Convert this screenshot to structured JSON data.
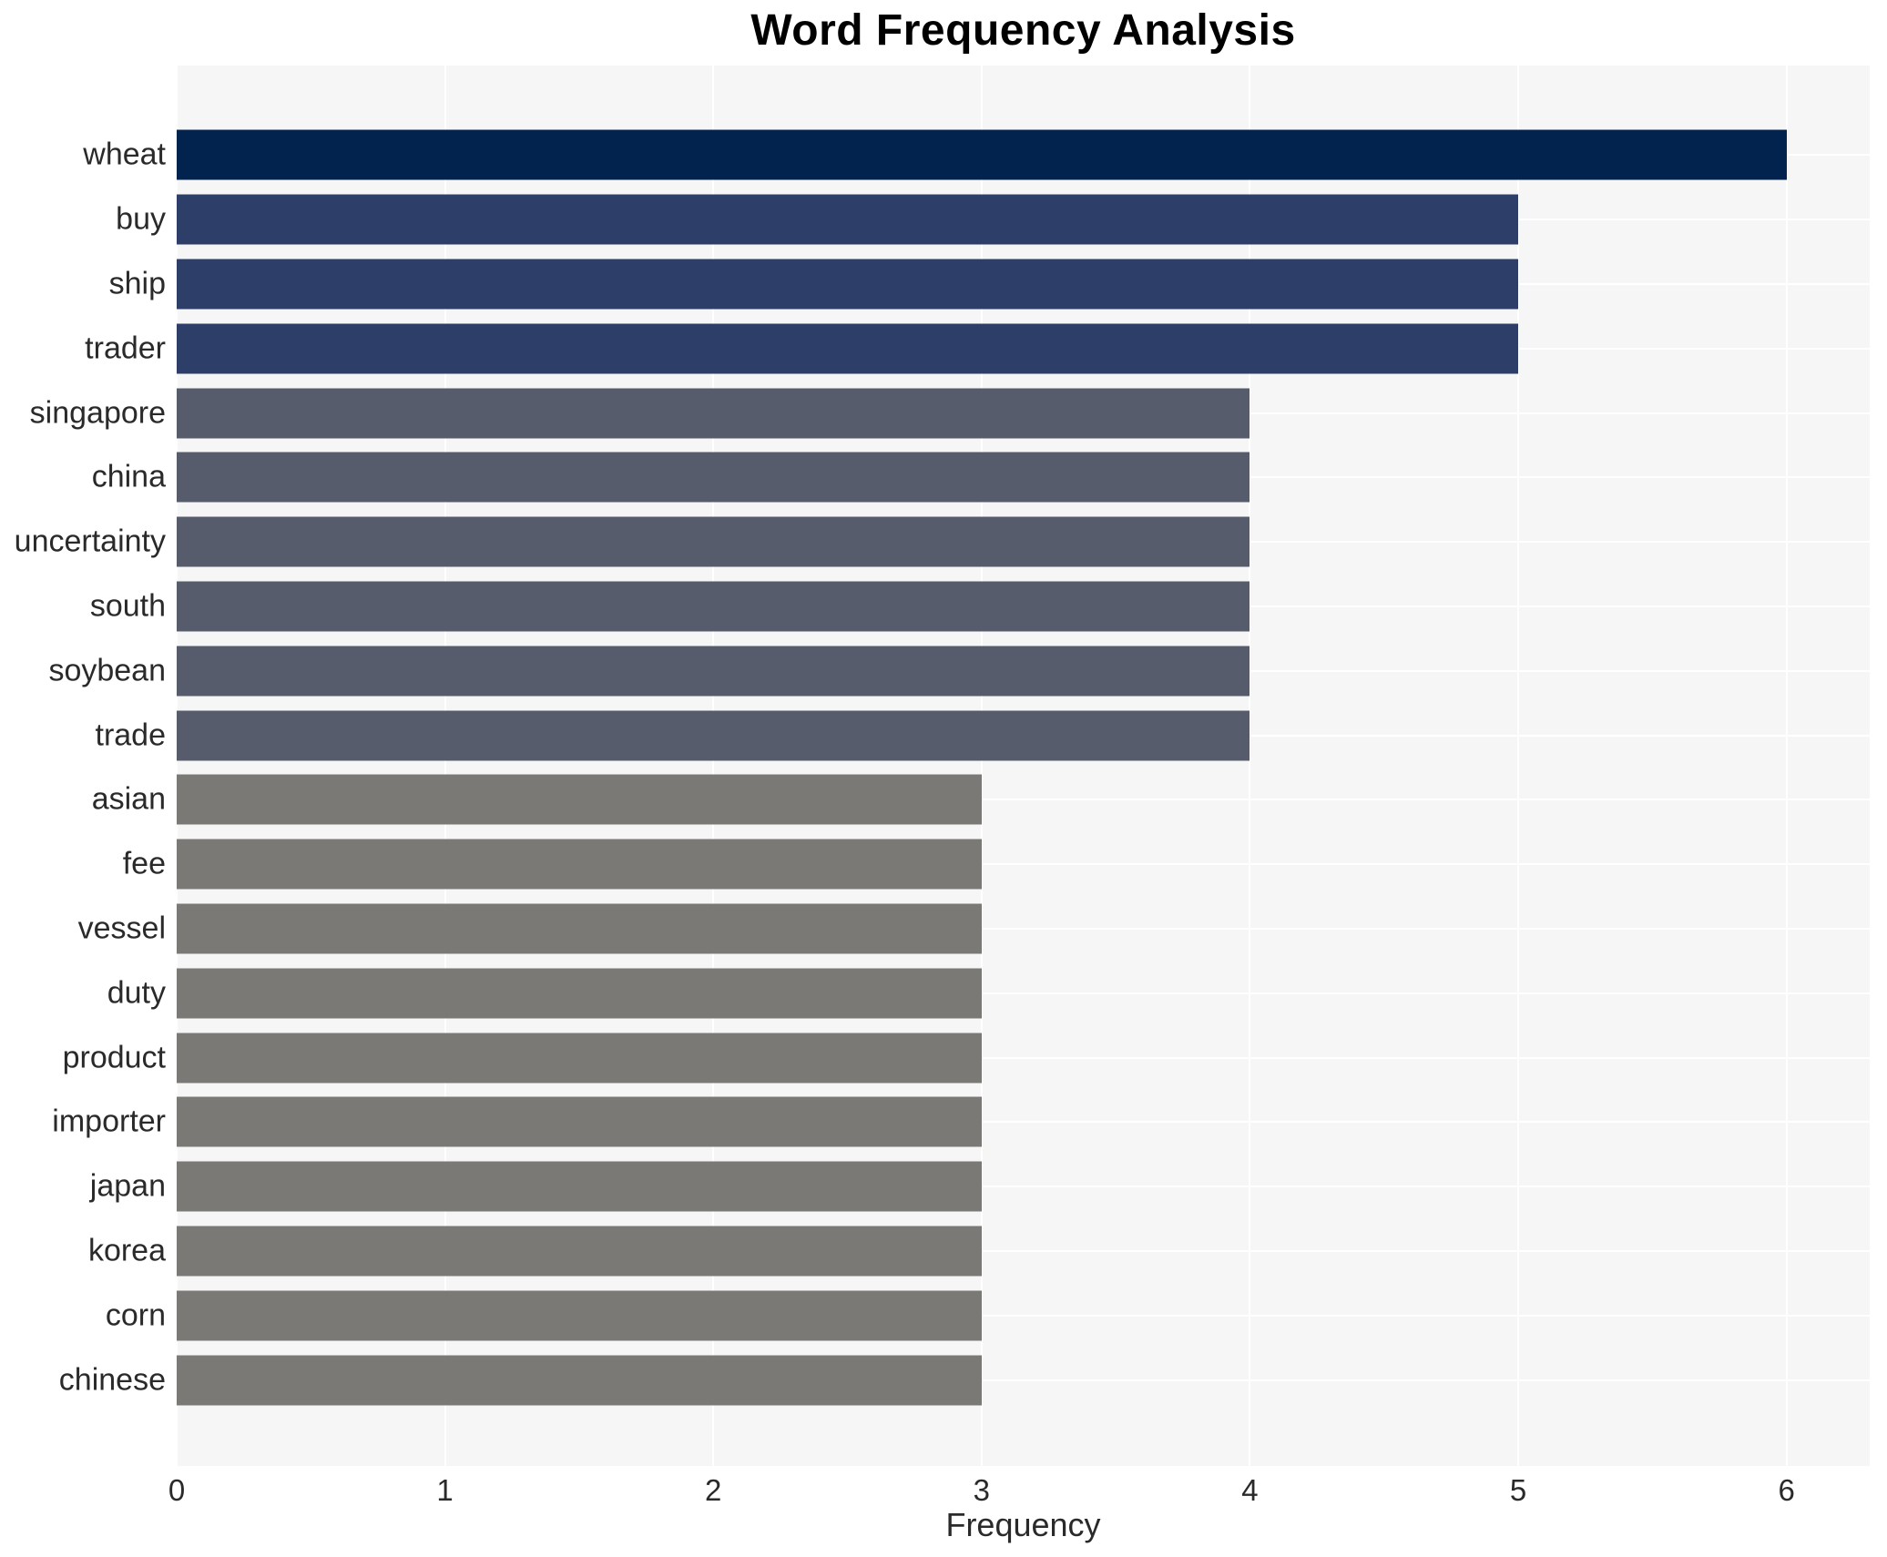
{
  "page": {
    "background": "#ffffff"
  },
  "chart_data": {
    "type": "bar",
    "orientation": "horizontal",
    "title": "Word Frequency Analysis",
    "xlabel": "Frequency",
    "ylabel": "",
    "categories": [
      "wheat",
      "buy",
      "ship",
      "trader",
      "singapore",
      "china",
      "uncertainty",
      "south",
      "soybean",
      "trade",
      "asian",
      "fee",
      "vessel",
      "duty",
      "product",
      "importer",
      "japan",
      "korea",
      "corn",
      "chinese"
    ],
    "values": [
      6,
      5,
      5,
      5,
      4,
      4,
      4,
      4,
      4,
      4,
      3,
      3,
      3,
      3,
      3,
      3,
      3,
      3,
      3,
      3
    ],
    "xticks": [
      "0",
      "1",
      "2",
      "3",
      "4",
      "5",
      "6"
    ],
    "xlim": [
      0,
      6.31
    ],
    "grid": true,
    "legend_position": "none",
    "plot_background": "#f6f6f6",
    "grid_color": "#ffffff",
    "value_colors": {
      "6": "#03234f",
      "5": "#2d3f68",
      "4": "#565c6b",
      "3": "#7a7975"
    },
    "text_color": "#2a2a2a",
    "title_color": "#000000"
  }
}
